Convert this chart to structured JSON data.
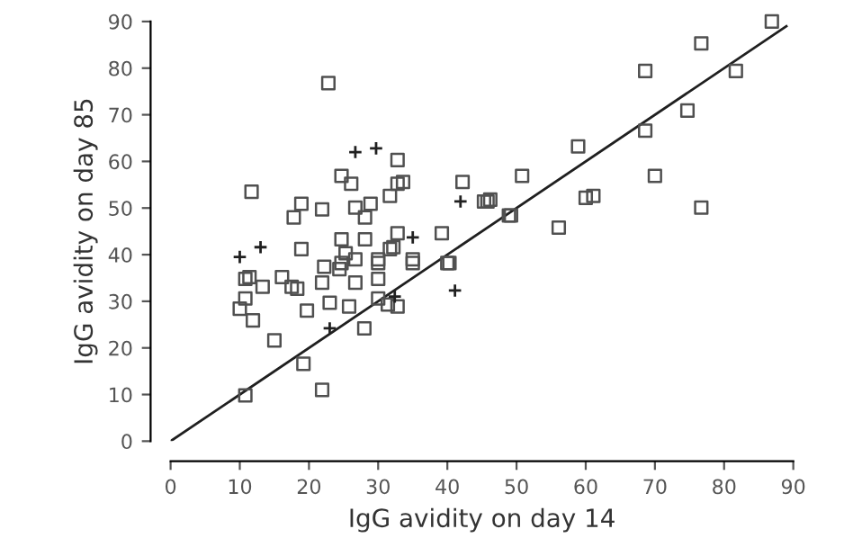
{
  "chart_data": {
    "type": "scatter",
    "xlabel": "IgG avidity on day 14",
    "ylabel": "IgG avidity on day 85",
    "xlim": [
      0,
      90
    ],
    "ylim": [
      0,
      90
    ],
    "xticks": [
      0,
      10,
      20,
      30,
      40,
      50,
      60,
      70,
      80,
      90
    ],
    "yticks": [
      0,
      10,
      20,
      30,
      40,
      50,
      60,
      70,
      80,
      90
    ],
    "grid": false,
    "legend": false,
    "series": [
      {
        "marker": "square",
        "color": "#505050",
        "x": [
          22.8,
          11.7,
          32.8,
          24.7,
          26.1,
          33.6,
          32.8,
          31.7,
          42.2,
          45.3,
          46.2,
          48.9,
          18.9,
          17.8,
          21.9,
          26.7,
          28.9,
          28.1,
          24.7,
          28.1,
          32.8,
          31.7,
          39.2,
          18.9,
          35,
          40.3,
          22.2,
          24.7,
          26.7,
          30,
          11.4,
          16.1,
          10.8,
          13.3,
          17.5,
          18.3,
          10.8,
          10,
          11.9,
          19.7,
          15,
          19.2,
          10.8,
          21.9,
          21.9,
          24.4,
          25.3,
          23,
          26.7,
          25.8,
          30,
          30,
          30,
          31.4,
          32.8,
          35,
          40,
          28,
          32.2,
          86.9,
          76.7,
          68.6,
          81.7,
          74.7,
          68.6,
          58.9,
          50.8,
          70,
          60,
          61.1,
          76.7,
          49.2,
          56.1,
          45.8
        ],
        "values": [
          76.8,
          53.5,
          60.3,
          56.9,
          55.2,
          55.6,
          55.2,
          52.6,
          55.6,
          51.4,
          51.8,
          48.4,
          50.9,
          48,
          49.7,
          50.1,
          50.9,
          48,
          43.3,
          43.3,
          44.6,
          41.2,
          44.6,
          41.2,
          39,
          38.2,
          37.4,
          38.2,
          39,
          39,
          35.2,
          35.2,
          34.8,
          33.1,
          33.1,
          32.7,
          30.6,
          28.4,
          25.9,
          28,
          21.6,
          16.6,
          9.8,
          11,
          34,
          36.9,
          40.3,
          29.7,
          34,
          28.9,
          38.2,
          34.8,
          30.6,
          29.3,
          28.9,
          38.2,
          38.2,
          24.2,
          41.6,
          90,
          85.3,
          79.4,
          79.4,
          70.9,
          66.6,
          63.2,
          56.9,
          56.9,
          52.2,
          52.6,
          50.1,
          48.4,
          45.8,
          51.4
        ]
      },
      {
        "marker": "cross",
        "color": "#202020",
        "x": [
          26.7,
          29.7,
          10,
          13,
          41.9,
          35,
          41.1,
          32.4,
          23
        ],
        "values": [
          62,
          62.8,
          39.5,
          41.6,
          51.4,
          43.7,
          32.3,
          31,
          24.2
        ]
      },
      {
        "type": "line",
        "marker": "none",
        "line_style": "solid",
        "color": "#202020",
        "x": [
          0,
          89
        ],
        "values": [
          0,
          89
        ]
      }
    ]
  }
}
